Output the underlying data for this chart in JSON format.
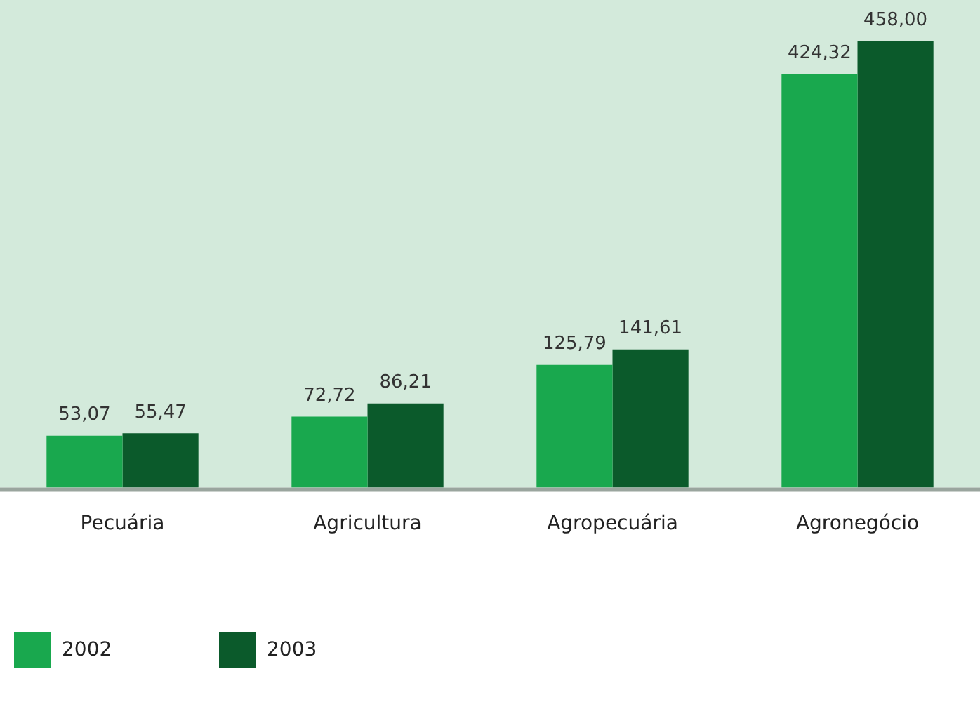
{
  "chart_data": {
    "type": "bar",
    "categories": [
      "Pecuária",
      "Agricultura",
      "Agropecuária",
      "Agronegócio"
    ],
    "series": [
      {
        "name": "2002",
        "color": "#19a84e",
        "values": [
          53.07,
          72.72,
          125.79,
          424.32
        ],
        "value_labels": [
          "53,07",
          "72,72",
          "125,79",
          "424,32"
        ]
      },
      {
        "name": "2003",
        "color": "#0b5a2b",
        "values": [
          55.47,
          86.21,
          141.61,
          458.0
        ],
        "value_labels": [
          "55,47",
          "86,21",
          "141,61",
          "458,00"
        ]
      }
    ],
    "legend": "bottom left",
    "grid": false
  }
}
